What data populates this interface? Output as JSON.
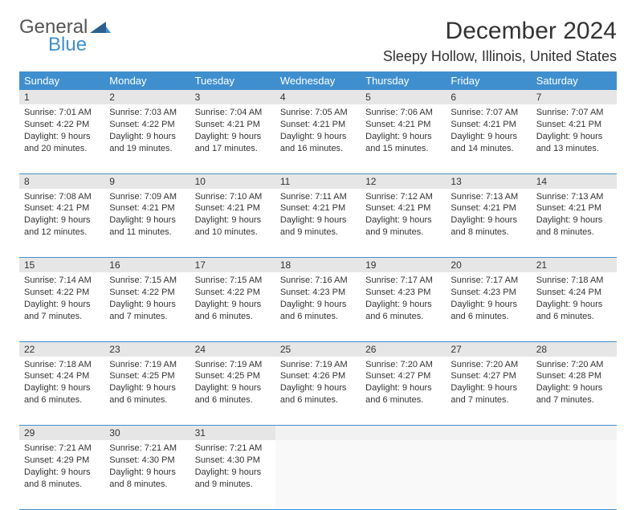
{
  "brand": {
    "line1": "General",
    "line2": "Blue"
  },
  "title": "December 2024",
  "location": "Sleepy Hollow, Illinois, United States",
  "colors": {
    "header_bg": "#3f8fcf",
    "header_text": "#ffffff",
    "daynum_bg": "#e6e6e6",
    "border": "#3f8fcf",
    "logo_gray": "#555555",
    "logo_blue": "#3f8fcf"
  },
  "weekdays": [
    "Sunday",
    "Monday",
    "Tuesday",
    "Wednesday",
    "Thursday",
    "Friday",
    "Saturday"
  ],
  "days": [
    {
      "n": 1,
      "sr": "7:01 AM",
      "ss": "4:22 PM",
      "dl": "9 hours and 20 minutes."
    },
    {
      "n": 2,
      "sr": "7:03 AM",
      "ss": "4:22 PM",
      "dl": "9 hours and 19 minutes."
    },
    {
      "n": 3,
      "sr": "7:04 AM",
      "ss": "4:21 PM",
      "dl": "9 hours and 17 minutes."
    },
    {
      "n": 4,
      "sr": "7:05 AM",
      "ss": "4:21 PM",
      "dl": "9 hours and 16 minutes."
    },
    {
      "n": 5,
      "sr": "7:06 AM",
      "ss": "4:21 PM",
      "dl": "9 hours and 15 minutes."
    },
    {
      "n": 6,
      "sr": "7:07 AM",
      "ss": "4:21 PM",
      "dl": "9 hours and 14 minutes."
    },
    {
      "n": 7,
      "sr": "7:07 AM",
      "ss": "4:21 PM",
      "dl": "9 hours and 13 minutes."
    },
    {
      "n": 8,
      "sr": "7:08 AM",
      "ss": "4:21 PM",
      "dl": "9 hours and 12 minutes."
    },
    {
      "n": 9,
      "sr": "7:09 AM",
      "ss": "4:21 PM",
      "dl": "9 hours and 11 minutes."
    },
    {
      "n": 10,
      "sr": "7:10 AM",
      "ss": "4:21 PM",
      "dl": "9 hours and 10 minutes."
    },
    {
      "n": 11,
      "sr": "7:11 AM",
      "ss": "4:21 PM",
      "dl": "9 hours and 9 minutes."
    },
    {
      "n": 12,
      "sr": "7:12 AM",
      "ss": "4:21 PM",
      "dl": "9 hours and 9 minutes."
    },
    {
      "n": 13,
      "sr": "7:13 AM",
      "ss": "4:21 PM",
      "dl": "9 hours and 8 minutes."
    },
    {
      "n": 14,
      "sr": "7:13 AM",
      "ss": "4:21 PM",
      "dl": "9 hours and 8 minutes."
    },
    {
      "n": 15,
      "sr": "7:14 AM",
      "ss": "4:22 PM",
      "dl": "9 hours and 7 minutes."
    },
    {
      "n": 16,
      "sr": "7:15 AM",
      "ss": "4:22 PM",
      "dl": "9 hours and 7 minutes."
    },
    {
      "n": 17,
      "sr": "7:15 AM",
      "ss": "4:22 PM",
      "dl": "9 hours and 6 minutes."
    },
    {
      "n": 18,
      "sr": "7:16 AM",
      "ss": "4:23 PM",
      "dl": "9 hours and 6 minutes."
    },
    {
      "n": 19,
      "sr": "7:17 AM",
      "ss": "4:23 PM",
      "dl": "9 hours and 6 minutes."
    },
    {
      "n": 20,
      "sr": "7:17 AM",
      "ss": "4:23 PM",
      "dl": "9 hours and 6 minutes."
    },
    {
      "n": 21,
      "sr": "7:18 AM",
      "ss": "4:24 PM",
      "dl": "9 hours and 6 minutes."
    },
    {
      "n": 22,
      "sr": "7:18 AM",
      "ss": "4:24 PM",
      "dl": "9 hours and 6 minutes."
    },
    {
      "n": 23,
      "sr": "7:19 AM",
      "ss": "4:25 PM",
      "dl": "9 hours and 6 minutes."
    },
    {
      "n": 24,
      "sr": "7:19 AM",
      "ss": "4:25 PM",
      "dl": "9 hours and 6 minutes."
    },
    {
      "n": 25,
      "sr": "7:19 AM",
      "ss": "4:26 PM",
      "dl": "9 hours and 6 minutes."
    },
    {
      "n": 26,
      "sr": "7:20 AM",
      "ss": "4:27 PM",
      "dl": "9 hours and 6 minutes."
    },
    {
      "n": 27,
      "sr": "7:20 AM",
      "ss": "4:27 PM",
      "dl": "9 hours and 7 minutes."
    },
    {
      "n": 28,
      "sr": "7:20 AM",
      "ss": "4:28 PM",
      "dl": "9 hours and 7 minutes."
    },
    {
      "n": 29,
      "sr": "7:21 AM",
      "ss": "4:29 PM",
      "dl": "9 hours and 8 minutes."
    },
    {
      "n": 30,
      "sr": "7:21 AM",
      "ss": "4:30 PM",
      "dl": "9 hours and 8 minutes."
    },
    {
      "n": 31,
      "sr": "7:21 AM",
      "ss": "4:30 PM",
      "dl": "9 hours and 9 minutes."
    }
  ],
  "labels": {
    "sunrise": "Sunrise:",
    "sunset": "Sunset:",
    "daylight": "Daylight:"
  },
  "start_weekday": 0,
  "cols": 7
}
